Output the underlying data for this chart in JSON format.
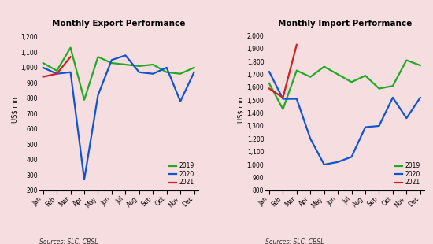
{
  "months": [
    "Jan",
    "Feb",
    "Mar",
    "Apr",
    "May",
    "Jun",
    "Jul",
    "Aug",
    "Sep",
    "Oct",
    "Nov",
    "Dec"
  ],
  "export": {
    "title": "Monthly Export Performance",
    "ylabel": "US$ mn",
    "ylim": [
      200,
      1250
    ],
    "yticks": [
      200,
      300,
      400,
      500,
      600,
      700,
      800,
      900,
      1000,
      1100,
      1200
    ],
    "series_2019": [
      1030,
      980,
      1130,
      790,
      1070,
      1030,
      1020,
      1010,
      1020,
      970,
      960,
      1000
    ],
    "series_2020": [
      1000,
      960,
      970,
      270,
      820,
      1050,
      1080,
      970,
      960,
      1000,
      780,
      970
    ],
    "series_2021": [
      940,
      960,
      1070,
      null,
      null,
      null,
      null,
      null,
      null,
      null,
      null,
      null
    ]
  },
  "import": {
    "title": "Monthly Import Performance",
    "ylabel": "US$ mn",
    "ylim": [
      800,
      2050
    ],
    "yticks": [
      800,
      900,
      1000,
      1100,
      1200,
      1300,
      1400,
      1500,
      1600,
      1700,
      1800,
      1900,
      2000
    ],
    "series_2019": [
      1630,
      1430,
      1730,
      1680,
      1760,
      1700,
      1640,
      1690,
      1590,
      1610,
      1810,
      1770
    ],
    "series_2020": [
      1720,
      1510,
      1510,
      1200,
      1000,
      1020,
      1060,
      1290,
      1300,
      1520,
      1360,
      1520
    ],
    "series_2021": [
      1590,
      1520,
      1930,
      null,
      null,
      null,
      null,
      null,
      null,
      null,
      null,
      null
    ]
  },
  "color_2019": "#22aa22",
  "color_2020": "#1155cc",
  "color_2021": "#cc2222",
  "bg_color": "#f5dde0",
  "source_text": "Sources: SLC, CBSL",
  "linewidth": 1.6
}
